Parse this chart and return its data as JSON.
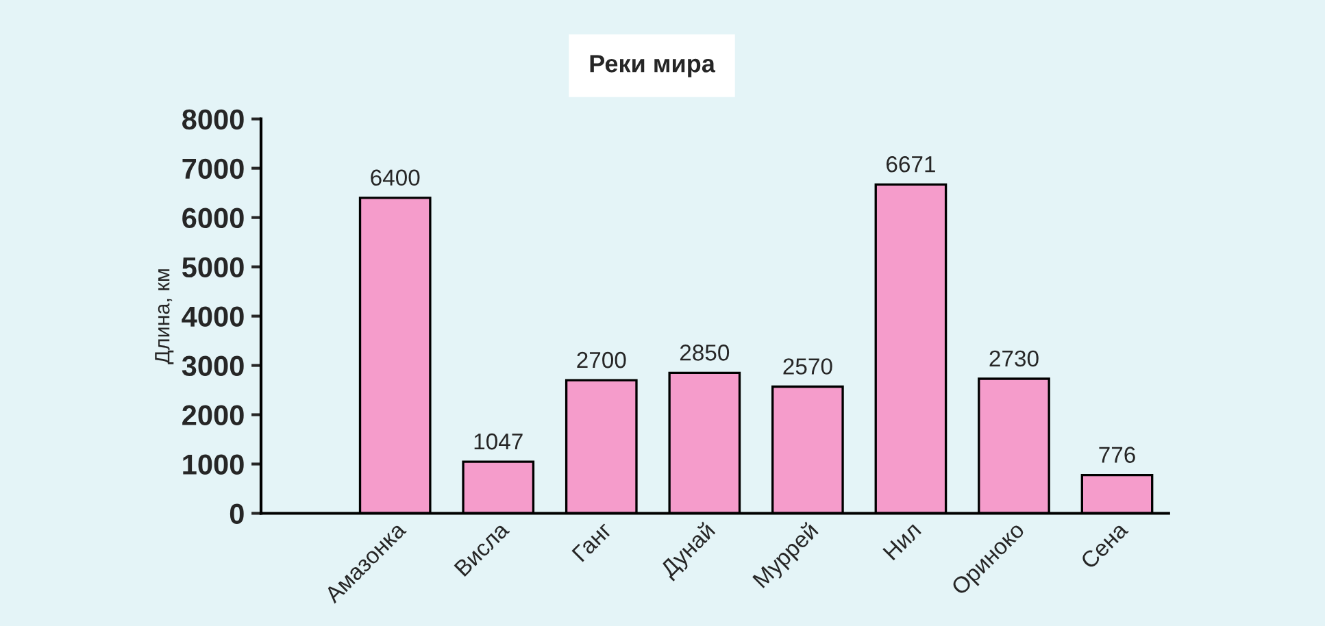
{
  "chart_data": {
    "type": "bar",
    "title": "Реки мира",
    "ylabel": "Длина, км",
    "categories": [
      "Амазонка",
      "Висла",
      "Ганг",
      "Дунай",
      "Муррей",
      "Нил",
      "Ориноко",
      "Сена"
    ],
    "values": [
      6400,
      1047,
      2700,
      2850,
      2570,
      6671,
      2730,
      776
    ],
    "color": "#f59ccb",
    "ylim": [
      0,
      8000
    ],
    "yticks": [
      0,
      1000,
      2000,
      3000,
      4000,
      5000,
      6000,
      7000,
      8000
    ],
    "data_labels": true,
    "grid": false,
    "legend": false
  }
}
